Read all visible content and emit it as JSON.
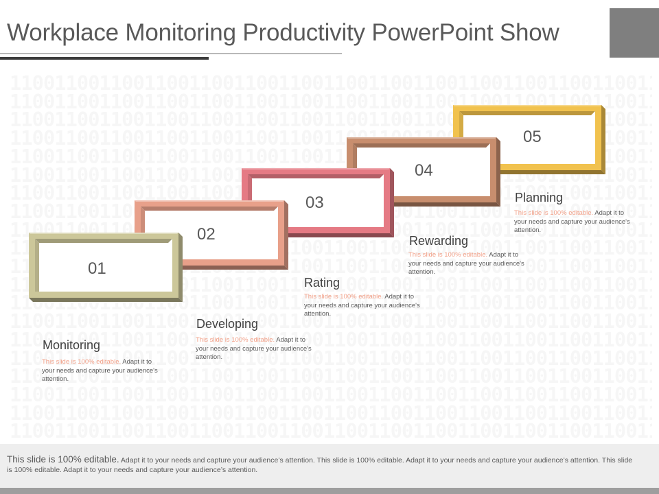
{
  "slide": {
    "title": "Workplace Monitoring Productivity PowerPoint Show"
  },
  "background": {
    "binary_row": "110011001100110011001100110011001100110011001100110011001100110011"
  },
  "steps": [
    {
      "number": "01",
      "title": "Monitoring",
      "desc_highlight": "This slide is 100% editable.",
      "desc_rest": " Adapt it to your needs and capture your audience's attention.",
      "frame_color": "#ccc79a"
    },
    {
      "number": "02",
      "title": "Developing",
      "desc_highlight": "This slide is 100% editable.",
      "desc_rest": " Adapt it to your needs and capture your audience's attention.",
      "frame_color": "#e8a08a"
    },
    {
      "number": "03",
      "title": "Rating",
      "desc_highlight": "This slide is 100% editable.",
      "desc_rest": " Adapt it to your needs and capture your audience's attention.",
      "frame_color": "#e57a84"
    },
    {
      "number": "04",
      "title": "Rewarding",
      "desc_highlight": "This slide is 100% editable.",
      "desc_rest": " Adapt it to your needs and capture your audience's attention.",
      "frame_color": "#c88e6e"
    },
    {
      "number": "05",
      "title": "Planning",
      "desc_highlight": "This slide is 100% editable.",
      "desc_rest": " Adapt it to your needs and capture your audience's attention.",
      "frame_color": "#f1c24e"
    }
  ],
  "footer": {
    "lead": "This slide is 100% editable.",
    "rest": " Adapt it to your needs and capture your audience’s attention. This slide is 100% editable. Adapt it to your needs and capture your audience’s attention. This slide is 100% editable. Adapt it to your needs and capture your audience’s attention."
  },
  "colors": {
    "title_text": "#595959",
    "corner_block": "#7f7f7f",
    "highlight_text": "#f2a189",
    "footer_bg": "#eeeeee",
    "footer_bar": "#9e9e9e"
  }
}
